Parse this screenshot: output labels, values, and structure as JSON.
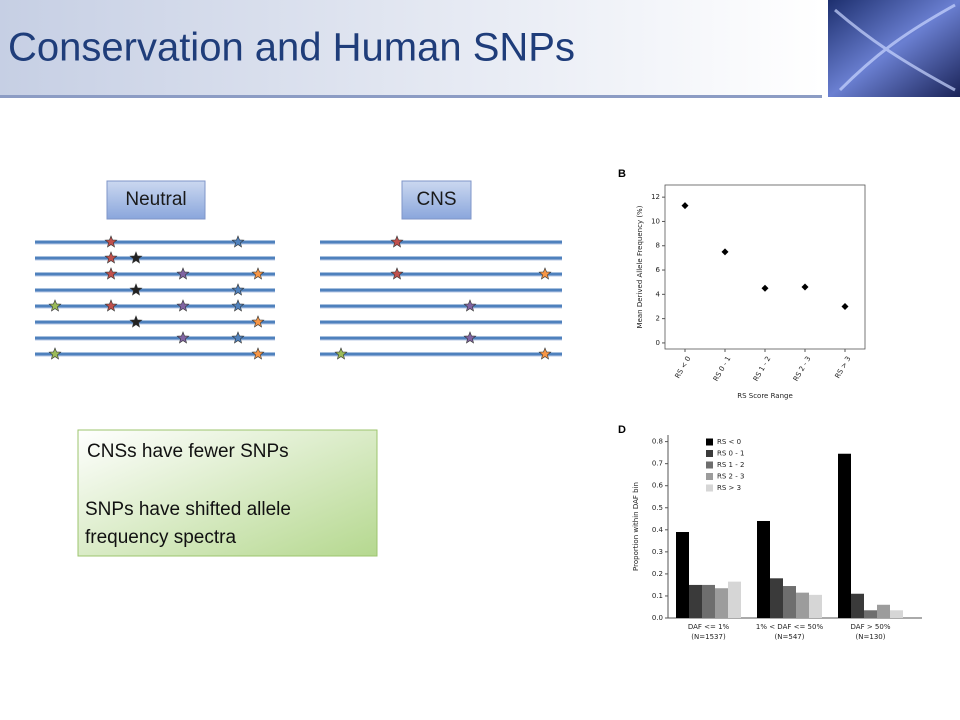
{
  "title": "Conservation and Human SNPs",
  "diagram": {
    "labels": [
      "Neutral",
      "CNS"
    ]
  },
  "textbox": {
    "lines": [
      "CNSs have fewer SNPs",
      "SNPs have shifted allele frequency spectra"
    ]
  },
  "chart_data": [
    {
      "type": "scatter",
      "panel": "B",
      "ylabel": "Mean Derived Allele Frequency (%)",
      "xlabel": "RS Score Range",
      "categories": [
        "RS < 0",
        "RS 0 - 1",
        "RS 1 - 2",
        "RS 2 - 3",
        "RS > 3"
      ],
      "values": [
        11.3,
        7.5,
        4.5,
        4.6,
        3.0
      ],
      "color": "#000000",
      "ylim": [
        -0.5,
        13
      ],
      "yticks": [
        0,
        2,
        4,
        6,
        8,
        10,
        12
      ]
    },
    {
      "type": "bar",
      "panel": "D",
      "ylabel": "Proportion within DAF bin",
      "categories": [
        "DAF <= 1%",
        "1% < DAF <= 50%",
        "DAF > 50%"
      ],
      "category_notes": [
        "(N=1537)",
        "(N=547)",
        "(N=130)"
      ],
      "series": [
        {
          "name": "RS < 0",
          "color": "#000000",
          "values": [
            0.39,
            0.44,
            0.745
          ]
        },
        {
          "name": "RS 0 - 1",
          "color": "#3a3a3a",
          "values": [
            0.15,
            0.18,
            0.11
          ]
        },
        {
          "name": "RS 1 - 2",
          "color": "#6e6e6e",
          "values": [
            0.15,
            0.145,
            0.035
          ]
        },
        {
          "name": "RS 2 - 3",
          "color": "#9c9c9c",
          "values": [
            0.135,
            0.115,
            0.06
          ]
        },
        {
          "name": "RS > 3",
          "color": "#d6d6d6",
          "values": [
            0.165,
            0.105,
            0.035
          ]
        }
      ],
      "ylim": [
        0,
        0.83
      ],
      "yticks": [
        {
          "value": 0,
          "label": "0.0"
        },
        0.1,
        0.2,
        0.3,
        0.4,
        0.5,
        0.6,
        0.7,
        0.8
      ],
      "legend": "top-left"
    }
  ]
}
